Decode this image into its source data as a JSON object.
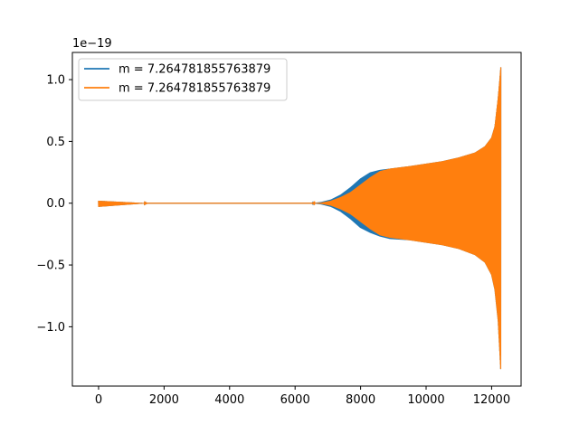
{
  "chart_data": {
    "type": "line",
    "title": "",
    "xlabel": "",
    "ylabel": "",
    "y_offset_label": "1e−19",
    "xlim": [
      -800,
      12900
    ],
    "ylim": [
      -1.48,
      1.22
    ],
    "x_ticks": [
      0,
      2000,
      4000,
      6000,
      8000,
      10000,
      12000
    ],
    "x_tick_labels": [
      "0",
      "2000",
      "4000",
      "6000",
      "8000",
      "10000",
      "12000"
    ],
    "y_ticks": [
      -1.0,
      -0.5,
      0.0,
      0.5,
      1.0
    ],
    "y_tick_labels": [
      "−1.0",
      "−0.5",
      "0.0",
      "0.5",
      "1.0"
    ],
    "grid": false,
    "legend_position": "upper-left",
    "series": [
      {
        "name": "m = 7.264781855763879",
        "color": "#1f77b4",
        "envelope_x": [
          0,
          1500,
          6500,
          6800,
          7100,
          7400,
          7700,
          8000,
          8300,
          8600,
          8900,
          9500,
          10000,
          10500,
          11000,
          11500,
          11800,
          12000,
          12100,
          12200,
          12250,
          12280
        ],
        "envelope_upper": [
          0.02,
          0.0,
          0.0,
          0.01,
          0.03,
          0.07,
          0.13,
          0.2,
          0.25,
          0.27,
          0.28,
          0.3,
          0.32,
          0.34,
          0.37,
          0.41,
          0.46,
          0.53,
          0.62,
          0.85,
          1.0,
          1.1
        ],
        "envelope_lower": [
          -0.03,
          0.0,
          0.0,
          -0.01,
          -0.03,
          -0.07,
          -0.13,
          -0.2,
          -0.24,
          -0.27,
          -0.29,
          -0.3,
          -0.32,
          -0.34,
          -0.37,
          -0.42,
          -0.48,
          -0.58,
          -0.7,
          -0.95,
          -1.2,
          -1.36
        ]
      },
      {
        "name": "m = 7.264781855763879",
        "color": "#ff7f0e",
        "envelope_x": [
          0,
          1500,
          6500,
          6800,
          7100,
          7400,
          7700,
          8000,
          8300,
          8600,
          8900,
          9500,
          10000,
          10500,
          11000,
          11500,
          11800,
          12000,
          12100,
          12200,
          12250,
          12280
        ],
        "envelope_upper": [
          0.02,
          0.0,
          0.0,
          0.005,
          0.02,
          0.05,
          0.09,
          0.15,
          0.21,
          0.26,
          0.28,
          0.3,
          0.32,
          0.34,
          0.37,
          0.41,
          0.46,
          0.53,
          0.62,
          0.85,
          1.0,
          1.1
        ],
        "envelope_lower": [
          -0.03,
          0.0,
          0.0,
          -0.005,
          -0.02,
          -0.05,
          -0.09,
          -0.15,
          -0.21,
          -0.26,
          -0.28,
          -0.3,
          -0.32,
          -0.34,
          -0.37,
          -0.42,
          -0.48,
          -0.58,
          -0.7,
          -0.95,
          -1.2,
          -1.36
        ]
      }
    ]
  }
}
